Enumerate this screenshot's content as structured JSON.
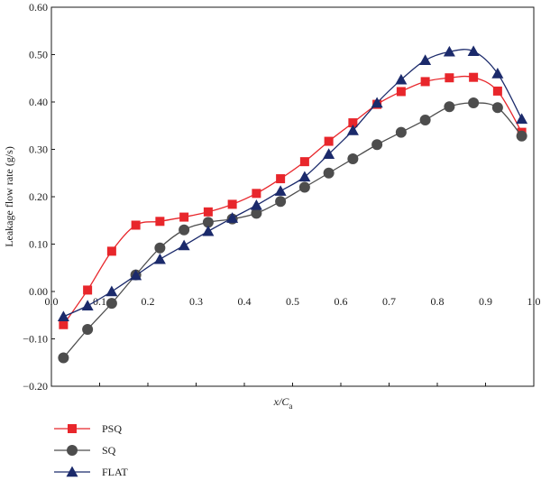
{
  "chart_data": {
    "type": "line",
    "xlabel": "x/C",
    "xlabel_sub": "a",
    "ylabel": "Leakage flow rate (g/s)",
    "xlim": [
      0.0,
      1.0
    ],
    "ylim": [
      -0.2,
      0.6
    ],
    "xticks": [
      "0.0",
      "0.1",
      "0.2",
      "0.3",
      "0.4",
      "0.5",
      "0.6",
      "0.7",
      "0.8",
      "0.9",
      "1.0"
    ],
    "yticks": [
      "0.60",
      "0.50",
      "0.40",
      "0.30",
      "0.20",
      "0.10",
      "0.00",
      "−0.10",
      "−0.20"
    ],
    "grid": false,
    "legend_position": "bottom-left",
    "x": [
      0.025,
      0.075,
      0.125,
      0.175,
      0.225,
      0.275,
      0.325,
      0.375,
      0.425,
      0.475,
      0.525,
      0.575,
      0.625,
      0.675,
      0.725,
      0.775,
      0.825,
      0.875,
      0.925,
      0.975
    ],
    "series": [
      {
        "name": "PSQ",
        "color": "#e8262b",
        "marker": "square",
        "values": [
          -0.07,
          0.003,
          0.085,
          0.14,
          0.148,
          0.157,
          0.168,
          0.184,
          0.207,
          0.238,
          0.274,
          0.317,
          0.356,
          0.395,
          0.422,
          0.443,
          0.451,
          0.452,
          0.423,
          0.336
        ]
      },
      {
        "name": "SQ",
        "color": "#4d4d4d",
        "marker": "circle",
        "values": [
          -0.14,
          -0.08,
          -0.025,
          0.035,
          0.092,
          0.13,
          0.146,
          0.153,
          0.165,
          0.19,
          0.22,
          0.25,
          0.28,
          0.31,
          0.336,
          0.362,
          0.39,
          0.398,
          0.388,
          0.328
        ]
      },
      {
        "name": "FLAT",
        "color": "#1b2a6b",
        "marker": "triangle",
        "values": [
          -0.053,
          -0.03,
          0.0,
          0.034,
          0.068,
          0.097,
          0.127,
          0.155,
          0.182,
          0.212,
          0.242,
          0.29,
          0.34,
          0.398,
          0.447,
          0.488,
          0.506,
          0.507,
          0.46,
          0.364
        ]
      }
    ]
  }
}
